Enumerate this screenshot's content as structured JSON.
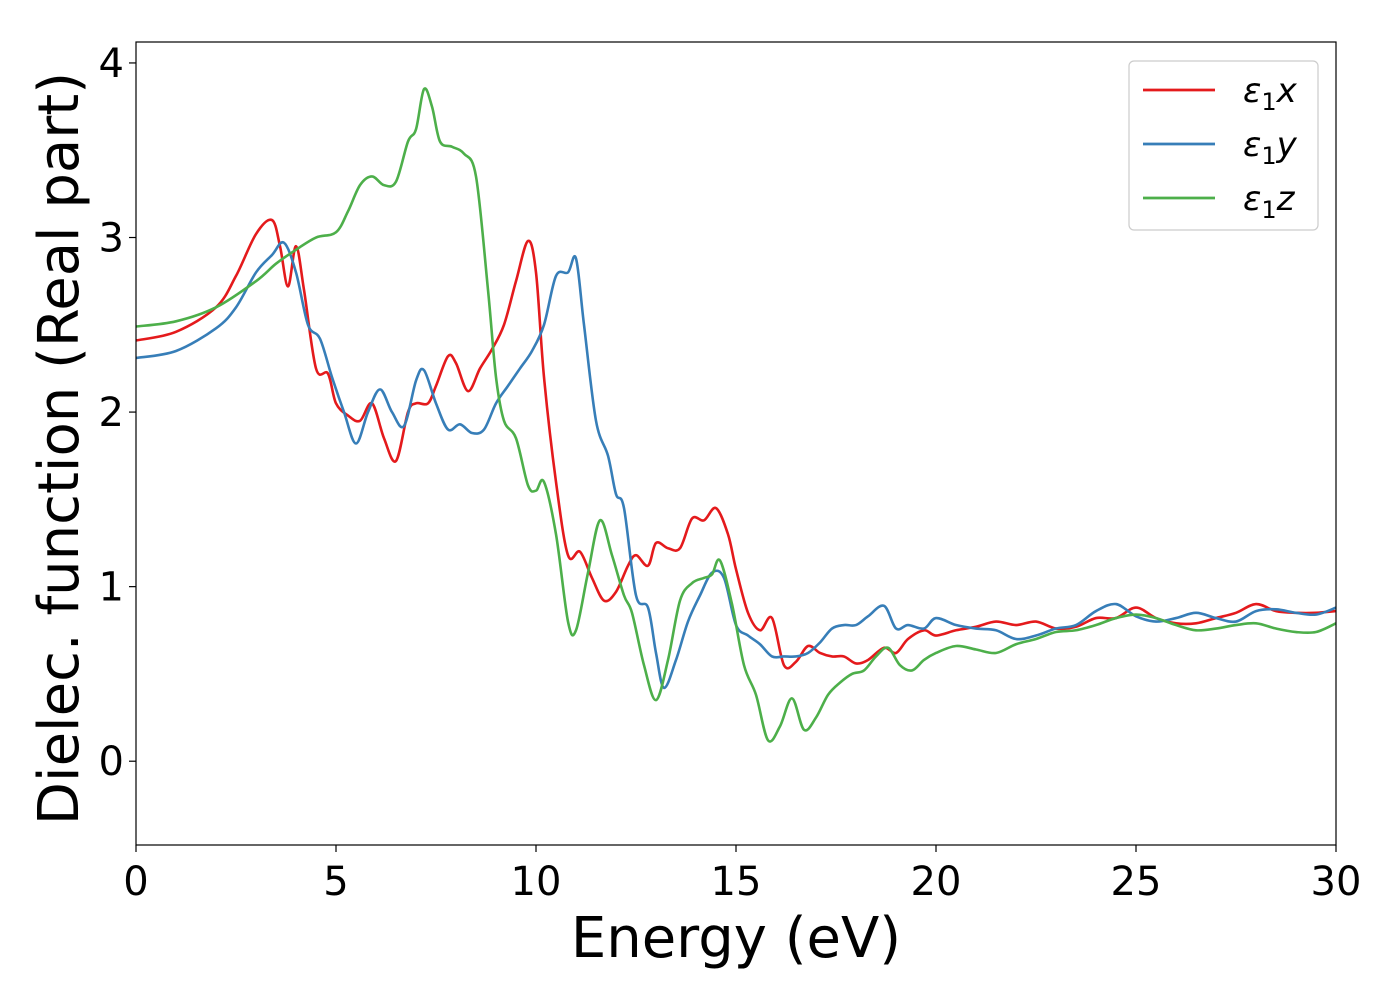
{
  "chart_data": {
    "type": "line",
    "title": "",
    "xlabel": "Energy (eV)",
    "ylabel": "Dielec. function (Real part)",
    "xlim": [
      0,
      30
    ],
    "ylim": [
      -0.48,
      4.12
    ],
    "xticks": [
      0,
      5,
      10,
      15,
      20,
      25,
      30
    ],
    "xtick_labels": [
      "0",
      "5",
      "10",
      "15",
      "20",
      "25",
      "30"
    ],
    "yticks": [
      0,
      1,
      2,
      3,
      4
    ],
    "ytick_labels": [
      "0",
      "1",
      "2",
      "3",
      "4"
    ],
    "grid": false,
    "legend": "top-right",
    "series": [
      {
        "name": "ε₁x",
        "legend_base": "ε",
        "legend_sub": "1",
        "legend_var": "x",
        "color": "#e41a1c",
        "x": [
          0,
          1,
          2,
          2.5,
          3,
          3.4,
          3.6,
          3.8,
          4.0,
          4.2,
          4.5,
          4.8,
          5.0,
          5.3,
          5.6,
          5.9,
          6.2,
          6.5,
          6.8,
          7.0,
          7.3,
          7.5,
          7.8,
          8.0,
          8.3,
          8.6,
          8.9,
          9.2,
          9.5,
          9.8,
          10.0,
          10.2,
          10.5,
          10.8,
          11.1,
          11.4,
          11.7,
          12.0,
          12.3,
          12.5,
          12.8,
          13.0,
          13.3,
          13.6,
          13.9,
          14.2,
          14.5,
          14.8,
          15.0,
          15.3,
          15.6,
          15.9,
          16.2,
          16.5,
          16.8,
          17.1,
          17.4,
          17.7,
          18.0,
          18.3,
          18.7,
          19.0,
          19.3,
          19.7,
          20.0,
          20.5,
          21.0,
          21.5,
          22.0,
          22.5,
          23.0,
          23.5,
          24.0,
          24.5,
          25.0,
          25.5,
          26.0,
          26.5,
          27.0,
          27.5,
          28.0,
          28.5,
          29.0,
          29.5,
          30.0
        ],
        "y": [
          2.41,
          2.46,
          2.6,
          2.78,
          3.02,
          3.1,
          2.95,
          2.72,
          2.95,
          2.7,
          2.25,
          2.22,
          2.05,
          1.98,
          1.95,
          2.05,
          1.85,
          1.72,
          2.0,
          2.05,
          2.05,
          2.15,
          2.32,
          2.28,
          2.12,
          2.25,
          2.36,
          2.5,
          2.75,
          2.98,
          2.8,
          2.2,
          1.6,
          1.18,
          1.2,
          1.05,
          0.92,
          0.97,
          1.12,
          1.18,
          1.12,
          1.25,
          1.22,
          1.22,
          1.39,
          1.38,
          1.45,
          1.3,
          1.1,
          0.85,
          0.75,
          0.82,
          0.55,
          0.57,
          0.66,
          0.62,
          0.6,
          0.6,
          0.56,
          0.58,
          0.65,
          0.62,
          0.7,
          0.75,
          0.72,
          0.75,
          0.77,
          0.8,
          0.78,
          0.8,
          0.76,
          0.77,
          0.82,
          0.82,
          0.88,
          0.82,
          0.79,
          0.79,
          0.82,
          0.85,
          0.9,
          0.86,
          0.85,
          0.85,
          0.86
        ]
      },
      {
        "name": "ε₁y",
        "legend_base": "ε",
        "legend_sub": "1",
        "legend_var": "y",
        "color": "#377eb8",
        "x": [
          0,
          1,
          2,
          2.5,
          3,
          3.4,
          3.7,
          4.0,
          4.3,
          4.6,
          4.9,
          5.2,
          5.5,
          5.8,
          6.1,
          6.4,
          6.7,
          7.0,
          7.2,
          7.5,
          7.8,
          8.1,
          8.4,
          8.7,
          9.0,
          9.3,
          9.6,
          9.9,
          10.2,
          10.5,
          10.8,
          11.0,
          11.2,
          11.5,
          11.8,
          12.0,
          12.2,
          12.5,
          12.8,
          13.0,
          13.2,
          13.5,
          13.8,
          14.1,
          14.4,
          14.7,
          15.0,
          15.3,
          15.6,
          15.9,
          16.2,
          16.5,
          16.8,
          17.1,
          17.4,
          17.7,
          18.0,
          18.3,
          18.7,
          19.0,
          19.3,
          19.7,
          20.0,
          20.5,
          21.0,
          21.5,
          22.0,
          22.5,
          23.0,
          23.5,
          24.0,
          24.5,
          25.0,
          25.5,
          26.0,
          26.5,
          27.0,
          27.5,
          28.0,
          28.5,
          29.0,
          29.5,
          30.0
        ],
        "y": [
          2.31,
          2.35,
          2.48,
          2.6,
          2.8,
          2.9,
          2.97,
          2.8,
          2.5,
          2.42,
          2.2,
          2.0,
          1.82,
          2.0,
          2.13,
          2.0,
          1.92,
          2.18,
          2.24,
          2.05,
          1.9,
          1.93,
          1.88,
          1.9,
          2.05,
          2.15,
          2.25,
          2.35,
          2.5,
          2.78,
          2.8,
          2.88,
          2.5,
          1.95,
          1.75,
          1.53,
          1.45,
          0.95,
          0.88,
          0.62,
          0.42,
          0.58,
          0.8,
          0.95,
          1.08,
          1.05,
          0.78,
          0.72,
          0.67,
          0.6,
          0.6,
          0.6,
          0.62,
          0.68,
          0.76,
          0.78,
          0.78,
          0.83,
          0.89,
          0.76,
          0.78,
          0.76,
          0.82,
          0.78,
          0.76,
          0.75,
          0.7,
          0.72,
          0.76,
          0.78,
          0.86,
          0.9,
          0.83,
          0.8,
          0.82,
          0.85,
          0.82,
          0.8,
          0.86,
          0.87,
          0.85,
          0.84,
          0.88
        ]
      },
      {
        "name": "ε₁z",
        "legend_base": "ε",
        "legend_sub": "1",
        "legend_var": "z",
        "color": "#4daf4a",
        "x": [
          0,
          1,
          2,
          3,
          3.5,
          4.0,
          4.5,
          5.0,
          5.3,
          5.6,
          5.9,
          6.2,
          6.5,
          6.8,
          7.0,
          7.2,
          7.4,
          7.6,
          7.9,
          8.2,
          8.5,
          8.8,
          9.0,
          9.2,
          9.5,
          9.8,
          10.0,
          10.2,
          10.5,
          10.8,
          11.0,
          11.3,
          11.6,
          11.9,
          12.2,
          12.4,
          12.7,
          13.0,
          13.3,
          13.6,
          13.9,
          14.2,
          14.4,
          14.6,
          14.9,
          15.2,
          15.5,
          15.8,
          16.1,
          16.4,
          16.7,
          17.0,
          17.3,
          17.6,
          17.9,
          18.2,
          18.5,
          18.8,
          19.1,
          19.4,
          19.7,
          20.0,
          20.5,
          21.0,
          21.5,
          22.0,
          22.5,
          23.0,
          23.5,
          24.0,
          24.5,
          25.0,
          25.5,
          26.0,
          26.5,
          27.0,
          27.5,
          28.0,
          28.5,
          29.0,
          29.5,
          30.0
        ],
        "y": [
          2.49,
          2.52,
          2.6,
          2.75,
          2.85,
          2.93,
          3.0,
          3.03,
          3.15,
          3.3,
          3.35,
          3.3,
          3.32,
          3.55,
          3.62,
          3.85,
          3.75,
          3.55,
          3.52,
          3.48,
          3.35,
          2.7,
          2.2,
          1.95,
          1.85,
          1.58,
          1.55,
          1.6,
          1.3,
          0.8,
          0.75,
          1.08,
          1.38,
          1.18,
          0.95,
          0.85,
          0.55,
          0.35,
          0.58,
          0.92,
          1.02,
          1.05,
          1.07,
          1.15,
          0.9,
          0.55,
          0.38,
          0.12,
          0.2,
          0.36,
          0.18,
          0.25,
          0.38,
          0.45,
          0.5,
          0.52,
          0.6,
          0.65,
          0.55,
          0.52,
          0.58,
          0.62,
          0.66,
          0.64,
          0.62,
          0.67,
          0.7,
          0.74,
          0.75,
          0.78,
          0.82,
          0.84,
          0.82,
          0.78,
          0.75,
          0.76,
          0.78,
          0.79,
          0.76,
          0.74,
          0.74,
          0.79
        ]
      }
    ]
  }
}
